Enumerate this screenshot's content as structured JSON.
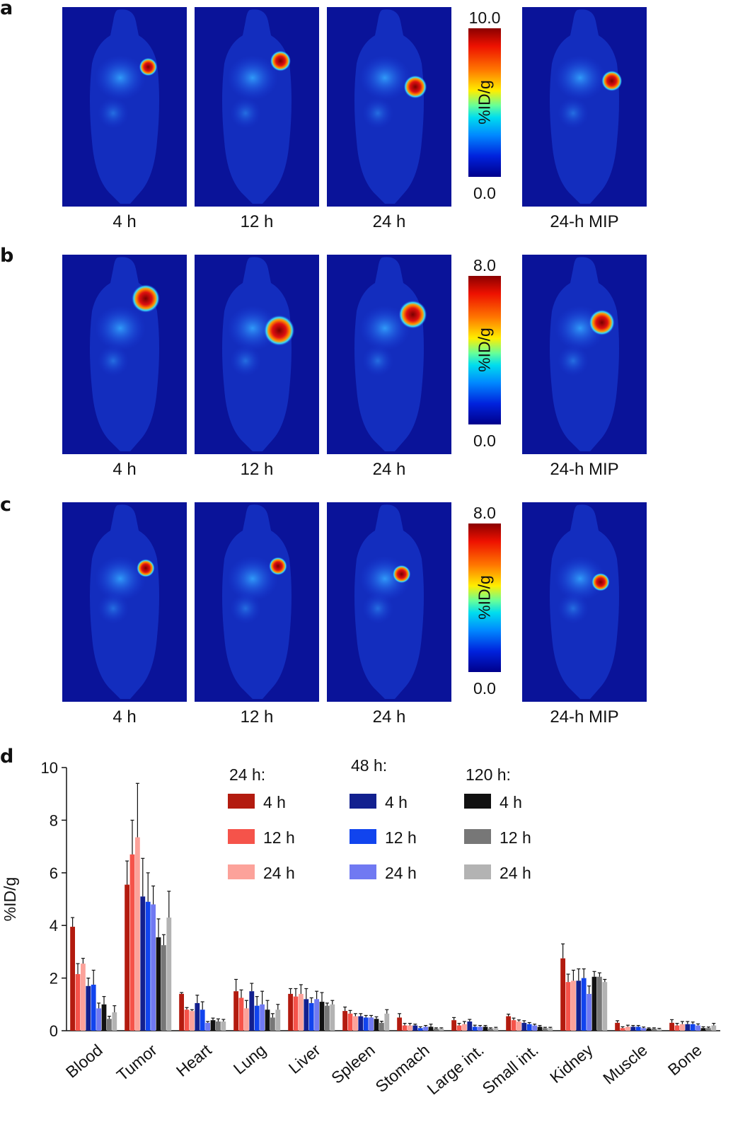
{
  "panels": [
    {
      "label": "a",
      "colorbar": {
        "max": "10.0",
        "min": "0.0",
        "unit": "%ID/g"
      },
      "captions": [
        "4 h",
        "12 h",
        "24 h",
        "24-h MIP"
      ]
    },
    {
      "label": "b",
      "colorbar": {
        "max": "8.0",
        "min": "0.0",
        "unit": "%ID/g"
      },
      "captions": [
        "4 h",
        "12 h",
        "24 h",
        "24-h MIP"
      ]
    },
    {
      "label": "c",
      "colorbar": {
        "max": "8.0",
        "min": "0.0",
        "unit": "%ID/g"
      },
      "captions": [
        "4 h",
        "12 h",
        "24 h",
        "24-h MIP"
      ]
    }
  ],
  "chart_data": {
    "panel_label": "d",
    "type": "bar",
    "ylabel": "%ID/g",
    "ylim": [
      0,
      10
    ],
    "yticks": [
      "0",
      "2",
      "4",
      "6",
      "8",
      "10"
    ],
    "categories": [
      "Blood",
      "Tumor",
      "Heart",
      "Lung",
      "Liver",
      "Spleen",
      "Stomach",
      "Large int.",
      "Small int.",
      "Kidney",
      "Muscle",
      "Bone"
    ],
    "legend_groups": [
      {
        "title": "24 h:",
        "items": [
          "4 h",
          "12 h",
          "24 h"
        ]
      },
      {
        "title": "48 h:",
        "items": [
          "4 h",
          "12 h",
          "24 h"
        ]
      },
      {
        "title": "120 h:",
        "items": [
          "4 h",
          "12 h",
          "24 h"
        ]
      }
    ],
    "series": [
      {
        "name": "24 h: 4 h",
        "color": "#b31b0f",
        "values": [
          3.95,
          5.55,
          1.4,
          1.5,
          1.4,
          0.75,
          0.5,
          0.4,
          0.55,
          2.75,
          0.3,
          0.3
        ],
        "errors": [
          0.35,
          0.9,
          0.05,
          0.45,
          0.2,
          0.15,
          0.15,
          0.1,
          0.08,
          0.55,
          0.08,
          0.12
        ]
      },
      {
        "name": "24 h: 12 h",
        "color": "#f5534a",
        "values": [
          2.15,
          6.7,
          0.8,
          1.25,
          1.3,
          0.65,
          0.2,
          0.2,
          0.4,
          1.85,
          0.1,
          0.2
        ],
        "errors": [
          0.4,
          1.3,
          0.08,
          0.3,
          0.3,
          0.12,
          0.08,
          0.08,
          0.08,
          0.3,
          0.05,
          0.08
        ]
      },
      {
        "name": "24 h: 24 h",
        "color": "#fca29a",
        "values": [
          2.55,
          7.35,
          0.75,
          0.85,
          1.4,
          0.55,
          0.2,
          0.25,
          0.35,
          1.9,
          0.15,
          0.25
        ],
        "errors": [
          0.2,
          2.05,
          0.05,
          0.3,
          0.35,
          0.1,
          0.08,
          0.1,
          0.06,
          0.4,
          0.06,
          0.1
        ]
      },
      {
        "name": "48 h: 4 h",
        "color": "#12208f",
        "values": [
          1.7,
          5.1,
          1.05,
          1.5,
          1.2,
          0.55,
          0.2,
          0.35,
          0.3,
          1.9,
          0.15,
          0.25
        ],
        "errors": [
          0.3,
          1.45,
          0.3,
          0.3,
          0.4,
          0.1,
          0.05,
          0.08,
          0.08,
          0.45,
          0.05,
          0.1
        ]
      },
      {
        "name": "48 h: 12 h",
        "color": "#1144ee",
        "values": [
          1.75,
          4.9,
          0.8,
          0.95,
          1.05,
          0.5,
          0.1,
          0.15,
          0.25,
          2.0,
          0.15,
          0.25
        ],
        "errors": [
          0.55,
          1.1,
          0.3,
          0.35,
          0.2,
          0.08,
          0.05,
          0.06,
          0.06,
          0.35,
          0.05,
          0.08
        ]
      },
      {
        "name": "48 h: 24 h",
        "color": "#7079f2",
        "values": [
          0.85,
          4.8,
          0.3,
          1.0,
          1.2,
          0.5,
          0.15,
          0.15,
          0.2,
          1.4,
          0.1,
          0.2
        ],
        "errors": [
          0.2,
          0.7,
          0.05,
          0.5,
          0.3,
          0.08,
          0.05,
          0.05,
          0.05,
          0.3,
          0.04,
          0.06
        ]
      },
      {
        "name": "120 h: 4 h",
        "color": "#111111",
        "values": [
          1.0,
          3.55,
          0.4,
          0.8,
          1.1,
          0.45,
          0.15,
          0.15,
          0.15,
          2.05,
          0.08,
          0.1
        ],
        "errors": [
          0.3,
          0.7,
          0.08,
          0.35,
          0.35,
          0.08,
          0.1,
          0.05,
          0.05,
          0.2,
          0.03,
          0.05
        ]
      },
      {
        "name": "120 h: 12 h",
        "color": "#777777",
        "values": [
          0.45,
          3.25,
          0.35,
          0.5,
          0.95,
          0.3,
          0.08,
          0.08,
          0.1,
          2.05,
          0.08,
          0.1
        ],
        "errors": [
          0.1,
          0.4,
          0.1,
          0.15,
          0.1,
          0.06,
          0.03,
          0.03,
          0.03,
          0.15,
          0.03,
          0.04
        ]
      },
      {
        "name": "120 h: 24 h",
        "color": "#b3b3b3",
        "values": [
          0.7,
          4.3,
          0.35,
          0.8,
          1.0,
          0.65,
          0.08,
          0.1,
          0.1,
          1.85,
          0.06,
          0.2
        ],
        "errors": [
          0.25,
          1.0,
          0.08,
          0.2,
          0.15,
          0.15,
          0.03,
          0.03,
          0.03,
          0.1,
          0.03,
          0.08
        ]
      }
    ]
  }
}
